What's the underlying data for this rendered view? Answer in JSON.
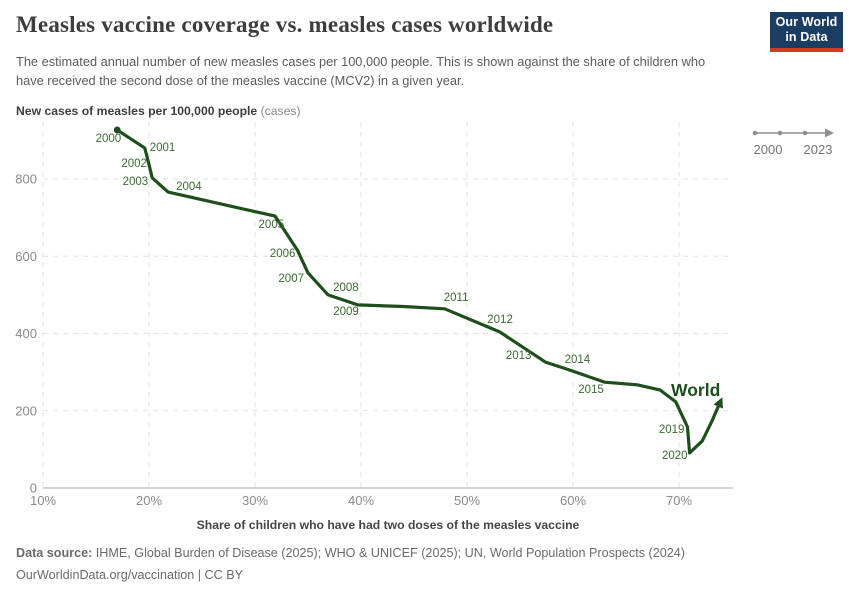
{
  "header": {
    "title": "Measles vaccine coverage vs. measles cases worldwide",
    "subtitle": "The estimated annual number of new measles cases per 100,000 people. This is shown against the share of children who have received the second dose of the measles vaccine (MCV2) in a given year.",
    "logo": {
      "line1": "Our World",
      "line2": "in Data"
    }
  },
  "timeline": {
    "start_label": "2000",
    "end_label": "2023"
  },
  "chart_data": {
    "type": "line",
    "title": "Measles vaccine coverage vs. measles cases worldwide",
    "xlabel": "Share of children who have had two doses of the measles vaccine",
    "ylabel_bold": "New cases of measles per 100,000 people",
    "ylabel_light": "(cases)",
    "series_label": "World",
    "xlim": [
      10,
      75
    ],
    "ylim": [
      0,
      940
    ],
    "grid": true,
    "x_ticks": [
      {
        "value": 10,
        "label": "10%"
      },
      {
        "value": 20,
        "label": "20%"
      },
      {
        "value": 30,
        "label": "30%"
      },
      {
        "value": 40,
        "label": "40%"
      },
      {
        "value": 50,
        "label": "50%"
      },
      {
        "value": 60,
        "label": "60%"
      },
      {
        "value": 70,
        "label": "70%"
      }
    ],
    "y_ticks": [
      0,
      200,
      400,
      600,
      800
    ],
    "points": [
      {
        "year": 2000,
        "share": 17.0,
        "cases": 927
      },
      {
        "year": 2001,
        "share": 19.6,
        "cases": 880
      },
      {
        "year": 2002,
        "share": 19.9,
        "cases": 849
      },
      {
        "year": 2003,
        "share": 20.3,
        "cases": 803
      },
      {
        "year": 2004,
        "share": 21.8,
        "cases": 766
      },
      {
        "year": 2005,
        "share": 31.9,
        "cases": 704
      },
      {
        "year": 2006,
        "share": 34.0,
        "cases": 616
      },
      {
        "year": 2007,
        "share": 35.0,
        "cases": 557
      },
      {
        "year": 2008,
        "share": 36.9,
        "cases": 500
      },
      {
        "year": 2009,
        "share": 39.7,
        "cases": 474
      },
      {
        "year": 2010,
        "share": 44.0,
        "cases": 470
      },
      {
        "year": 2011,
        "share": 47.9,
        "cases": 464
      },
      {
        "year": 2012,
        "share": 53.1,
        "cases": 404
      },
      {
        "year": 2013,
        "share": 57.4,
        "cases": 326
      },
      {
        "year": 2014,
        "share": 59.4,
        "cases": 308
      },
      {
        "year": 2015,
        "share": 63.0,
        "cases": 274
      },
      {
        "year": 2016,
        "share": 66.1,
        "cases": 267
      },
      {
        "year": 2017,
        "share": 68.2,
        "cases": 254
      },
      {
        "year": 2018,
        "share": 69.7,
        "cases": 223
      },
      {
        "year": 2019,
        "share": 70.8,
        "cases": 158
      },
      {
        "year": 2020,
        "share": 71.0,
        "cases": 91
      },
      {
        "year": 2021,
        "share": 72.2,
        "cases": 122
      },
      {
        "year": 2022,
        "share": 73.1,
        "cases": 173
      },
      {
        "year": 2023,
        "share": 73.9,
        "cases": 223
      }
    ],
    "labeled_years": [
      2000,
      2001,
      2002,
      2003,
      2004,
      2005,
      2006,
      2007,
      2008,
      2009,
      2011,
      2012,
      2013,
      2014,
      2015,
      2019,
      2020
    ],
    "colors": {
      "line": "#1f4e1d",
      "year_label": "#3c6a33",
      "series_label": "#1f4e1d",
      "grid": "#e1e1e1",
      "axis": "#a8a8a8",
      "tick_label": "#8a8a8a",
      "timeline": "#8f8f8f",
      "timeline_label": "#737373"
    }
  },
  "footer": {
    "source_label": "Data source:",
    "source_text": " IHME, Global Burden of Disease (2025); WHO & UNICEF (2025); UN, World Population Prospects (2024)",
    "license_line": "OurWorldinData.org/vaccination | CC BY"
  }
}
